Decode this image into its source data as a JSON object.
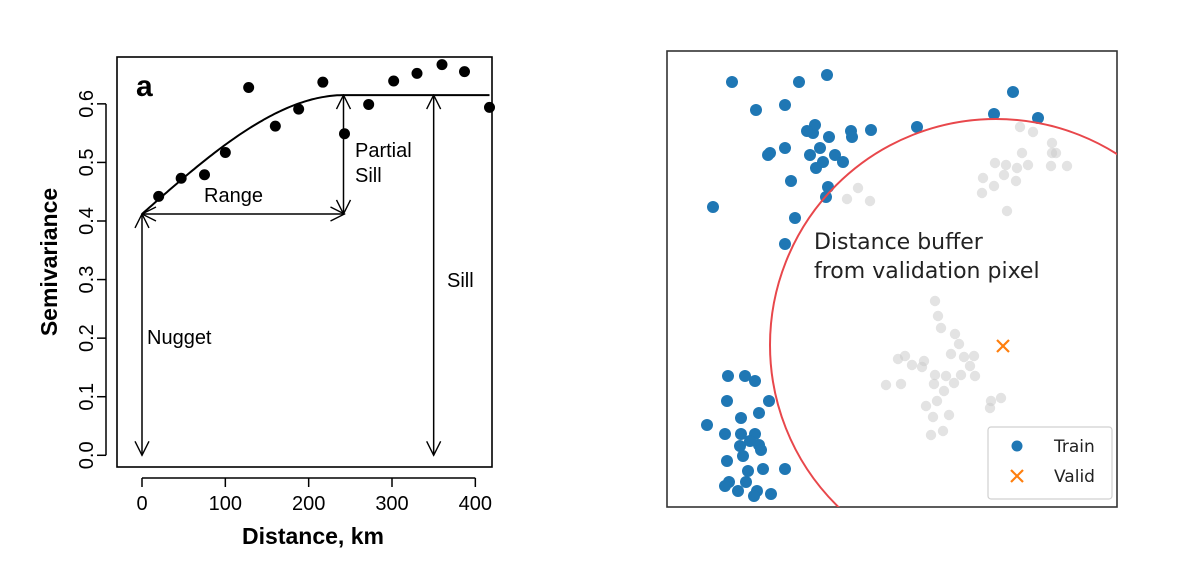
{
  "chart_data": [
    {
      "type": "scatter",
      "panel_label": "a",
      "xlabel": "Distance, km",
      "ylabel": "Semivariance",
      "xlim": [
        -30,
        420
      ],
      "ylim": [
        -0.02,
        0.68
      ],
      "xticks": [
        0,
        100,
        200,
        300,
        400
      ],
      "yticks": [
        0.0,
        0.1,
        0.2,
        0.3,
        0.4,
        0.5,
        0.6
      ],
      "ytick_labels": [
        "0.0",
        "0.1",
        "0.2",
        "0.3",
        "0.4",
        "0.5",
        "0.6"
      ],
      "grid": false,
      "points": {
        "x": [
          20,
          47,
          75,
          100,
          128,
          160,
          188,
          217,
          243,
          272,
          302,
          330,
          360,
          387,
          417
        ],
        "y": [
          0.442,
          0.473,
          0.479,
          0.517,
          0.628,
          0.562,
          0.591,
          0.637,
          0.549,
          0.599,
          0.639,
          0.652,
          0.667,
          0.655,
          0.594
        ]
      },
      "model": {
        "nugget": 0.412,
        "sill": 0.615,
        "range": 243,
        "x_end": 417
      },
      "annotations": {
        "range": "Range",
        "partial_sill_line1": "Partial",
        "partial_sill_line2": "Sill",
        "sill": "Sill",
        "nugget": "Nugget"
      }
    },
    {
      "type": "scatter",
      "title": "",
      "annotation_line1": "Distance buffer",
      "annotation_line2": "from validation pixel",
      "legend": {
        "placement": "bottom-right",
        "entries": [
          "Train",
          "Valid"
        ]
      },
      "colors": {
        "train": "#1f77b4",
        "valid": "#ff7f0e",
        "excluded": "#cccccc",
        "buffer": "#e8474b"
      },
      "buffer_circle": {
        "center": [
          336,
          300
        ],
        "radius": 226
      },
      "train": [
        [
          72,
          37
        ],
        [
          139,
          37
        ],
        [
          167,
          30
        ],
        [
          96,
          65
        ],
        [
          125,
          60
        ],
        [
          110,
          108
        ],
        [
          125,
          103
        ],
        [
          153,
          88
        ],
        [
          169,
          92
        ],
        [
          155,
          80
        ],
        [
          147,
          86
        ],
        [
          160,
          103
        ],
        [
          191,
          86
        ],
        [
          192,
          92
        ],
        [
          211,
          85
        ],
        [
          257,
          82
        ],
        [
          334,
          69
        ],
        [
          353,
          47
        ],
        [
          378,
          73
        ],
        [
          108,
          110
        ],
        [
          150,
          110
        ],
        [
          163,
          117
        ],
        [
          175,
          110
        ],
        [
          183,
          117
        ],
        [
          156,
          123
        ],
        [
          131,
          136
        ],
        [
          168,
          142
        ],
        [
          166,
          152
        ],
        [
          53,
          162
        ],
        [
          135,
          173
        ],
        [
          125,
          199
        ],
        [
          68,
          331
        ],
        [
          85,
          331
        ],
        [
          95,
          336
        ],
        [
          67,
          356
        ],
        [
          109,
          356
        ],
        [
          99,
          368
        ],
        [
          81,
          373
        ],
        [
          47,
          380
        ],
        [
          65,
          389
        ],
        [
          81,
          389
        ],
        [
          95,
          389
        ],
        [
          99,
          400
        ],
        [
          101,
          405
        ],
        [
          90,
          396
        ],
        [
          80,
          401
        ],
        [
          67,
          416
        ],
        [
          83,
          411
        ],
        [
          88,
          426
        ],
        [
          103,
          424
        ],
        [
          125,
          424
        ],
        [
          69,
          437
        ],
        [
          86,
          437
        ],
        [
          78,
          446
        ],
        [
          97,
          446
        ],
        [
          65,
          441
        ],
        [
          111,
          449
        ],
        [
          94,
          451
        ]
      ],
      "excluded": [
        [
          360,
          82
        ],
        [
          373,
          87
        ],
        [
          392,
          98
        ],
        [
          396,
          108
        ],
        [
          362,
          108
        ],
        [
          335,
          118
        ],
        [
          357,
          123
        ],
        [
          346,
          120
        ],
        [
          368,
          120
        ],
        [
          391,
          121
        ],
        [
          407,
          121
        ],
        [
          392,
          108
        ],
        [
          323,
          133
        ],
        [
          344,
          130
        ],
        [
          334,
          141
        ],
        [
          356,
          136
        ],
        [
          322,
          148
        ],
        [
          198,
          143
        ],
        [
          210,
          156
        ],
        [
          187,
          154
        ],
        [
          347,
          166
        ],
        [
          275,
          256
        ],
        [
          278,
          271
        ],
        [
          281,
          283
        ],
        [
          295,
          289
        ],
        [
          299,
          299
        ],
        [
          304,
          312
        ],
        [
          314,
          311
        ],
        [
          310,
          321
        ],
        [
          245,
          311
        ],
        [
          238,
          314
        ],
        [
          264,
          316
        ],
        [
          252,
          320
        ],
        [
          291,
          309
        ],
        [
          262,
          322
        ],
        [
          275,
          330
        ],
        [
          286,
          331
        ],
        [
          301,
          330
        ],
        [
          315,
          331
        ],
        [
          294,
          338
        ],
        [
          274,
          339
        ],
        [
          284,
          346
        ],
        [
          277,
          356
        ],
        [
          266,
          361
        ],
        [
          241,
          339
        ],
        [
          331,
          356
        ],
        [
          341,
          353
        ],
        [
          330,
          363
        ],
        [
          283,
          386
        ],
        [
          271,
          390
        ],
        [
          226,
          340
        ],
        [
          273,
          372
        ],
        [
          289,
          370
        ]
      ],
      "valid": [
        [
          343,
          301
        ]
      ]
    }
  ]
}
